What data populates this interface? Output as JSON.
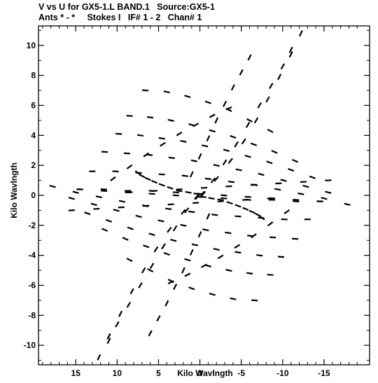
{
  "header": {
    "line1": "V vs U for GX5-1.L BAND.1   Source:GX5-1",
    "line2": "Ants * - *     Stokes I   IF# 1 - 2   Chan# 1"
  },
  "chart_data": {
    "type": "scatter",
    "xlabel": "Kilo Wavlngth",
    "ylabel": "Kilo Wavlngth",
    "xlim": [
      19.5,
      -20.5
    ],
    "ylim": [
      -11.3,
      11.3
    ],
    "x_ticks": [
      15,
      10,
      5,
      0,
      -5,
      -10,
      -15
    ],
    "y_ticks": [
      10,
      8,
      6,
      4,
      2,
      0,
      -2,
      -4,
      -6,
      -8,
      -10
    ],
    "grid": false,
    "marker_color": "#000000",
    "uv_tracks": [
      {
        "u": [
          -12.2,
          -11.0,
          -9.6,
          -8.2,
          -6.8,
          -5.3,
          -3.7,
          -2.0,
          -0.4
        ],
        "v": [
          10.8,
          9.4,
          7.9,
          6.4,
          5.0,
          3.6,
          2.3,
          1.1,
          0.1
        ]
      },
      {
        "u": [
          12.2,
          11.0,
          9.6,
          8.2,
          6.8,
          5.3,
          3.7,
          2.0,
          0.4
        ],
        "v": [
          -10.8,
          -9.4,
          -7.9,
          -6.4,
          -5.0,
          -3.6,
          -2.3,
          -1.1,
          -0.1
        ]
      },
      {
        "u": [
          -11.0,
          -10.0,
          -8.6,
          -7.2,
          -5.8,
          -4.4,
          -3.0,
          -1.6,
          -0.3
        ],
        "v": [
          9.7,
          8.6,
          7.3,
          6.0,
          4.7,
          3.4,
          2.2,
          1.0,
          0.1
        ]
      },
      {
        "u": [
          11.0,
          10.0,
          8.6,
          7.2,
          5.8,
          4.4,
          3.0,
          1.6,
          0.3
        ],
        "v": [
          -9.7,
          -8.6,
          -7.3,
          -6.0,
          -4.7,
          -3.4,
          -2.2,
          -1.0,
          -0.1
        ]
      },
      {
        "u": [
          6.6,
          4.0,
          1.5,
          -1.0,
          -3.5,
          -6.0,
          -8.5
        ],
        "v": [
          7.0,
          6.9,
          6.6,
          6.2,
          5.7,
          5.0,
          4.3
        ]
      },
      {
        "u": [
          -6.6,
          -4.0,
          -1.5,
          1.0,
          3.5,
          6.0,
          8.5
        ],
        "v": [
          -7.0,
          -6.9,
          -6.6,
          -6.2,
          -5.7,
          -5.0,
          -4.3
        ]
      },
      {
        "u": [
          8.5,
          6.0,
          3.5,
          1.0,
          -1.5,
          -4.0,
          -6.5,
          -9.0,
          -11.5
        ],
        "v": [
          5.3,
          5.2,
          5.0,
          4.7,
          4.3,
          3.9,
          3.4,
          2.9,
          2.3
        ]
      },
      {
        "u": [
          -8.5,
          -6.0,
          -3.5,
          -1.0,
          1.5,
          4.0,
          6.5,
          9.0,
          11.5
        ],
        "v": [
          -5.3,
          -5.2,
          -5.0,
          -4.7,
          -4.3,
          -3.9,
          -3.4,
          -2.9,
          -2.3
        ]
      },
      {
        "u": [
          9.8,
          7.2,
          4.6,
          2.0,
          -0.6,
          -3.2,
          -5.8,
          -8.4,
          -11.0,
          -13.6
        ],
        "v": [
          4.1,
          4.0,
          3.8,
          3.6,
          3.3,
          3.0,
          2.6,
          2.2,
          1.7,
          1.2
        ]
      },
      {
        "u": [
          -9.8,
          -7.2,
          -4.6,
          -2.0,
          0.6,
          3.2,
          5.8,
          8.4,
          11.0,
          13.6
        ],
        "v": [
          -4.1,
          -4.0,
          -3.8,
          -3.6,
          -3.3,
          -3.0,
          -2.6,
          -2.2,
          -1.7,
          -1.2
        ]
      },
      {
        "u": [
          11.5,
          8.8,
          6.1,
          3.4,
          0.7,
          -2.0,
          -4.7,
          -7.4,
          -10.1,
          -12.8,
          -15.5
        ],
        "v": [
          2.9,
          2.8,
          2.7,
          2.5,
          2.3,
          2.0,
          1.7,
          1.4,
          1.0,
          0.6,
          0.2
        ]
      },
      {
        "u": [
          -11.5,
          -8.8,
          -6.1,
          -3.4,
          -0.7,
          2.0,
          4.7,
          7.4,
          10.1,
          12.8,
          15.5
        ],
        "v": [
          -2.9,
          -2.8,
          -2.7,
          -2.5,
          -2.3,
          -2.0,
          -1.7,
          -1.4,
          -1.0,
          -0.6,
          -0.2
        ]
      },
      {
        "u": [
          13.0,
          10.2,
          7.4,
          4.6,
          1.8,
          -1.0,
          -3.8,
          -6.6,
          -9.4,
          -12.2,
          -15.0,
          -17.8
        ],
        "v": [
          1.6,
          1.6,
          1.5,
          1.4,
          1.3,
          1.1,
          0.9,
          0.7,
          0.4,
          0.1,
          -0.2,
          -0.6
        ]
      },
      {
        "u": [
          -13.0,
          -10.2,
          -7.4,
          -4.6,
          -1.8,
          1.0,
          3.8,
          6.6,
          9.4,
          12.2,
          15.0,
          17.8
        ],
        "v": [
          -1.6,
          -1.6,
          -1.5,
          -1.4,
          -1.3,
          -1.1,
          -0.9,
          -0.7,
          -0.4,
          -0.1,
          0.2,
          0.6
        ]
      },
      {
        "u": [
          14.5,
          11.6,
          8.7,
          5.8,
          2.9,
          0.0,
          -2.9,
          -5.8,
          -8.7,
          -11.6,
          -14.5
        ],
        "v": [
          0.4,
          0.4,
          0.3,
          0.3,
          0.2,
          0.1,
          0.0,
          -0.1,
          -0.2,
          -0.3,
          -0.4
        ]
      },
      {
        "u": [
          -14.5,
          -11.6,
          -8.7,
          -5.8,
          -2.9,
          0.0,
          2.9,
          5.8,
          8.7,
          11.6,
          14.5
        ],
        "v": [
          -0.4,
          -0.4,
          -0.3,
          -0.3,
          -0.2,
          -0.1,
          0.0,
          0.1,
          0.2,
          0.3,
          0.4
        ]
      },
      {
        "u": [
          15.5,
          12.5,
          9.5,
          6.5,
          3.5,
          0.5,
          -2.5,
          -5.5,
          -8.5
        ],
        "v": [
          -1.0,
          -0.9,
          -0.8,
          -0.7,
          -0.6,
          -0.5,
          -0.4,
          -0.3,
          -0.2
        ]
      },
      {
        "u": [
          -15.5,
          -12.5,
          -9.5,
          -6.5,
          -3.5,
          -0.5,
          2.5,
          5.5,
          8.5
        ],
        "v": [
          1.0,
          0.9,
          0.8,
          0.7,
          0.6,
          0.5,
          0.4,
          0.3,
          0.2
        ]
      },
      {
        "u": [
          7.5,
          7.0,
          6.3,
          5.5,
          4.6,
          3.6,
          2.5,
          1.4,
          0.4
        ],
        "v": [
          1.5,
          1.3,
          1.1,
          0.9,
          0.7,
          0.5,
          0.3,
          0.2,
          0.1
        ]
      },
      {
        "u": [
          -7.5,
          -7.0,
          -6.3,
          -5.5,
          -4.6,
          -3.6,
          -2.5,
          -1.4,
          -0.4
        ],
        "v": [
          -1.5,
          -1.3,
          -1.1,
          -0.9,
          -0.7,
          -0.5,
          -0.3,
          -0.2,
          -0.1
        ]
      },
      {
        "u": [
          -6.0,
          -5.0,
          -4.0,
          -3.0,
          -2.0,
          -1.0,
          0.0,
          1.0
        ],
        "v": [
          9.2,
          8.2,
          7.2,
          6.1,
          5.0,
          3.8,
          2.6,
          1.4
        ]
      },
      {
        "u": [
          6.0,
          5.0,
          4.0,
          3.0,
          2.0,
          1.0,
          0.0,
          -1.0
        ],
        "v": [
          -9.2,
          -8.2,
          -7.2,
          -6.1,
          -5.0,
          -3.8,
          -2.6,
          -1.4
        ]
      },
      {
        "u": [
          -3.5,
          -1.5,
          0.5,
          2.5,
          4.5,
          6.5,
          8.5,
          10.5
        ],
        "v": [
          5.8,
          5.3,
          4.7,
          4.1,
          3.4,
          2.7,
          1.9,
          1.1
        ]
      },
      {
        "u": [
          3.5,
          1.5,
          -0.5,
          -2.5,
          -4.5,
          -6.5,
          -8.5,
          -10.5
        ],
        "v": [
          -5.8,
          -5.3,
          -4.7,
          -4.1,
          -3.4,
          -2.7,
          -1.9,
          -1.1
        ]
      }
    ]
  }
}
